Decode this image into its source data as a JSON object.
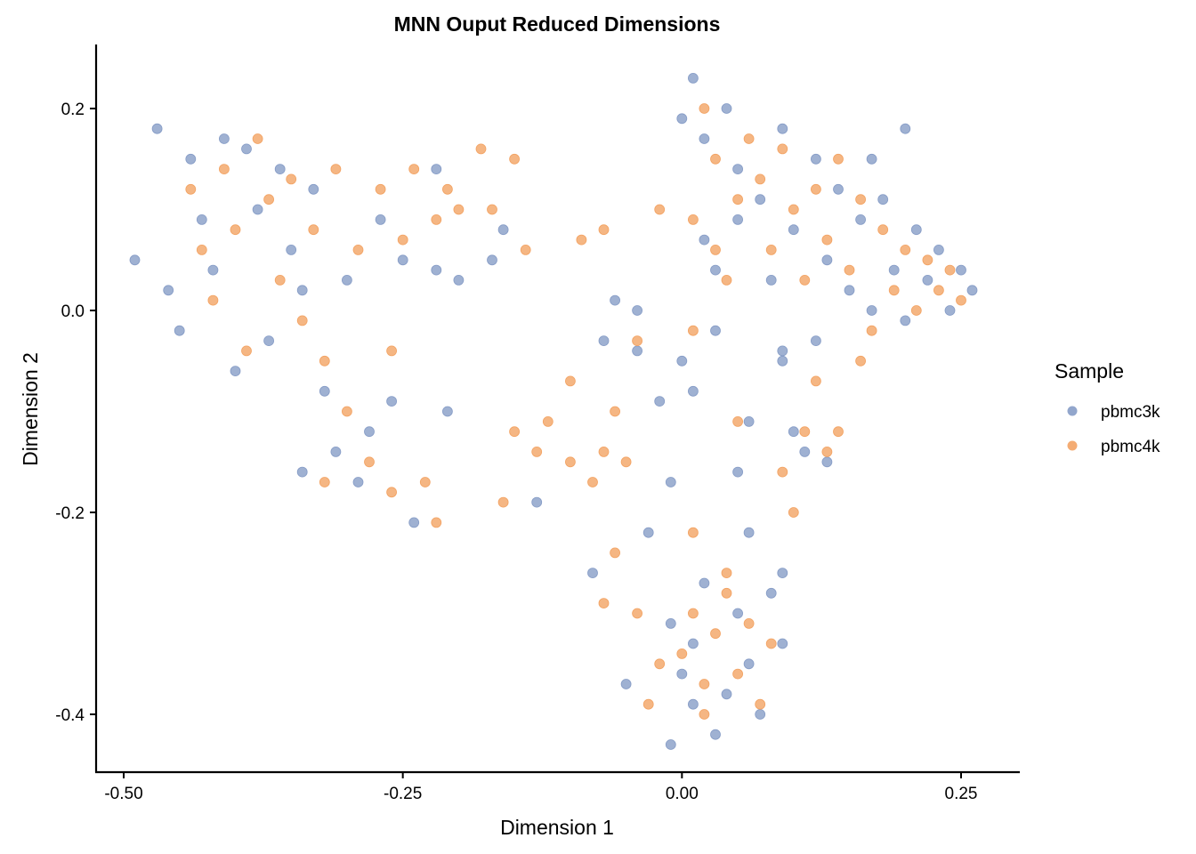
{
  "chart_data": {
    "type": "scatter",
    "title": "MNN Ouput Reduced Dimensions",
    "xlabel": "Dimension 1",
    "ylabel": "Dimension 2",
    "xlim": [
      -0.5,
      0.3
    ],
    "ylim": [
      -0.45,
      0.26
    ],
    "x_ticks": [
      -0.5,
      -0.25,
      0.0,
      0.25
    ],
    "x_tick_labels": [
      "-0.50",
      "-0.25",
      "0.00",
      "0.25"
    ],
    "y_ticks": [
      -0.4,
      -0.2,
      0.0,
      0.2
    ],
    "y_tick_labels": [
      "-0.4",
      "-0.2",
      "0.0",
      "0.2"
    ],
    "grid": false,
    "legend": {
      "title": "Sample",
      "position": "right"
    },
    "colors": {
      "pbmc3k": "#7f97c3",
      "pbmc4k": "#f29d5a"
    },
    "series": [
      {
        "name": "pbmc3k",
        "points": [
          [
            -0.49,
            0.05
          ],
          [
            -0.47,
            0.18
          ],
          [
            -0.46,
            0.02
          ],
          [
            -0.45,
            -0.02
          ],
          [
            -0.44,
            0.15
          ],
          [
            -0.43,
            0.09
          ],
          [
            -0.42,
            0.04
          ],
          [
            -0.41,
            0.17
          ],
          [
            -0.4,
            -0.06
          ],
          [
            -0.39,
            0.16
          ],
          [
            -0.38,
            0.1
          ],
          [
            -0.37,
            -0.03
          ],
          [
            -0.36,
            0.14
          ],
          [
            -0.35,
            0.06
          ],
          [
            -0.34,
            0.02
          ],
          [
            -0.33,
            0.12
          ],
          [
            -0.32,
            -0.08
          ],
          [
            -0.31,
            -0.14
          ],
          [
            -0.3,
            0.03
          ],
          [
            -0.29,
            -0.17
          ],
          [
            -0.27,
            0.09
          ],
          [
            -0.26,
            -0.09
          ],
          [
            -0.25,
            0.05
          ],
          [
            -0.24,
            -0.21
          ],
          [
            -0.22,
            0.14
          ],
          [
            -0.22,
            0.04
          ],
          [
            -0.21,
            -0.1
          ],
          [
            -0.2,
            0.03
          ],
          [
            -0.17,
            0.05
          ],
          [
            -0.16,
            0.08
          ],
          [
            -0.13,
            -0.19
          ],
          [
            -0.34,
            -0.16
          ],
          [
            -0.28,
            -0.12
          ],
          [
            -0.07,
            -0.03
          ],
          [
            -0.06,
            0.01
          ],
          [
            -0.04,
            -0.04
          ],
          [
            -0.04,
            0.0
          ],
          [
            -0.02,
            -0.09
          ],
          [
            -0.01,
            -0.17
          ],
          [
            0.0,
            -0.05
          ],
          [
            0.01,
            -0.08
          ],
          [
            0.03,
            -0.02
          ],
          [
            0.08,
            0.03
          ],
          [
            0.09,
            -0.04
          ],
          [
            0.1,
            -0.12
          ],
          [
            0.11,
            -0.14
          ],
          [
            0.13,
            -0.15
          ],
          [
            0.06,
            -0.11
          ],
          [
            0.05,
            -0.16
          ],
          [
            -0.08,
            -0.26
          ],
          [
            0.0,
            0.19
          ],
          [
            0.01,
            0.23
          ],
          [
            0.02,
            0.17
          ],
          [
            0.04,
            0.2
          ],
          [
            0.05,
            0.14
          ],
          [
            0.07,
            0.11
          ],
          [
            0.09,
            0.18
          ],
          [
            0.1,
            0.08
          ],
          [
            0.12,
            0.15
          ],
          [
            0.13,
            0.05
          ],
          [
            0.14,
            0.12
          ],
          [
            0.15,
            0.02
          ],
          [
            0.16,
            0.09
          ],
          [
            0.17,
            0.0
          ],
          [
            0.18,
            0.11
          ],
          [
            0.19,
            0.04
          ],
          [
            0.2,
            -0.01
          ],
          [
            0.21,
            0.08
          ],
          [
            0.22,
            0.03
          ],
          [
            0.23,
            0.06
          ],
          [
            0.24,
            0.0
          ],
          [
            0.25,
            0.04
          ],
          [
            0.26,
            0.02
          ],
          [
            0.2,
            0.18
          ],
          [
            0.17,
            0.15
          ],
          [
            0.12,
            -0.03
          ],
          [
            0.09,
            -0.05
          ],
          [
            0.03,
            0.04
          ],
          [
            0.02,
            0.07
          ],
          [
            0.05,
            0.09
          ],
          [
            0.01,
            -0.33
          ],
          [
            0.03,
            -0.42
          ],
          [
            0.04,
            -0.38
          ],
          [
            0.05,
            -0.3
          ],
          [
            0.06,
            -0.35
          ],
          [
            0.07,
            -0.4
          ],
          [
            0.08,
            -0.28
          ],
          [
            0.09,
            -0.33
          ],
          [
            0.02,
            -0.27
          ],
          [
            0.0,
            -0.36
          ],
          [
            -0.01,
            -0.31
          ],
          [
            -0.03,
            -0.22
          ],
          [
            0.01,
            -0.39
          ],
          [
            -0.05,
            -0.37
          ],
          [
            -0.01,
            -0.43
          ],
          [
            0.06,
            -0.22
          ],
          [
            0.09,
            -0.26
          ]
        ]
      },
      {
        "name": "pbmc4k",
        "points": [
          [
            -0.44,
            0.12
          ],
          [
            -0.43,
            0.06
          ],
          [
            -0.42,
            0.01
          ],
          [
            -0.41,
            0.14
          ],
          [
            -0.4,
            0.08
          ],
          [
            -0.39,
            -0.04
          ],
          [
            -0.38,
            0.17
          ],
          [
            -0.37,
            0.11
          ],
          [
            -0.36,
            0.03
          ],
          [
            -0.35,
            0.13
          ],
          [
            -0.34,
            -0.01
          ],
          [
            -0.33,
            0.08
          ],
          [
            -0.32,
            -0.05
          ],
          [
            -0.31,
            0.14
          ],
          [
            -0.3,
            -0.1
          ],
          [
            -0.29,
            0.06
          ],
          [
            -0.28,
            -0.15
          ],
          [
            -0.27,
            0.12
          ],
          [
            -0.26,
            -0.18
          ],
          [
            -0.25,
            0.07
          ],
          [
            -0.24,
            0.14
          ],
          [
            -0.23,
            -0.17
          ],
          [
            -0.22,
            0.09
          ],
          [
            -0.21,
            0.12
          ],
          [
            -0.2,
            0.1
          ],
          [
            -0.18,
            0.16
          ],
          [
            -0.17,
            0.1
          ],
          [
            -0.15,
            0.15
          ],
          [
            -0.14,
            0.06
          ],
          [
            -0.22,
            -0.21
          ],
          [
            -0.32,
            -0.17
          ],
          [
            -0.26,
            -0.04
          ],
          [
            -0.16,
            -0.19
          ],
          [
            -0.15,
            -0.12
          ],
          [
            -0.13,
            -0.14
          ],
          [
            -0.12,
            -0.11
          ],
          [
            -0.1,
            -0.15
          ],
          [
            -0.1,
            -0.07
          ],
          [
            -0.08,
            -0.17
          ],
          [
            -0.07,
            -0.14
          ],
          [
            -0.06,
            -0.1
          ],
          [
            -0.05,
            -0.15
          ],
          [
            -0.04,
            -0.03
          ],
          [
            -0.02,
            0.1
          ],
          [
            0.01,
            -0.02
          ],
          [
            0.05,
            -0.11
          ],
          [
            0.09,
            -0.16
          ],
          [
            0.11,
            -0.12
          ],
          [
            0.12,
            -0.07
          ],
          [
            0.13,
            -0.14
          ],
          [
            0.14,
            -0.12
          ],
          [
            0.1,
            -0.2
          ],
          [
            -0.07,
            0.08
          ],
          [
            -0.09,
            0.07
          ],
          [
            0.02,
            0.2
          ],
          [
            0.03,
            0.15
          ],
          [
            0.05,
            0.11
          ],
          [
            0.06,
            0.17
          ],
          [
            0.07,
            0.13
          ],
          [
            0.08,
            0.06
          ],
          [
            0.09,
            0.16
          ],
          [
            0.1,
            0.1
          ],
          [
            0.11,
            0.03
          ],
          [
            0.12,
            0.12
          ],
          [
            0.13,
            0.07
          ],
          [
            0.14,
            0.15
          ],
          [
            0.15,
            0.04
          ],
          [
            0.16,
            0.11
          ],
          [
            0.17,
            -0.02
          ],
          [
            0.18,
            0.08
          ],
          [
            0.19,
            0.02
          ],
          [
            0.2,
            0.06
          ],
          [
            0.21,
            0.0
          ],
          [
            0.22,
            0.05
          ],
          [
            0.23,
            0.02
          ],
          [
            0.24,
            0.04
          ],
          [
            0.25,
            0.01
          ],
          [
            0.03,
            0.06
          ],
          [
            0.04,
            0.03
          ],
          [
            0.01,
            0.09
          ],
          [
            0.16,
            -0.05
          ],
          [
            0.0,
            -0.34
          ],
          [
            0.01,
            -0.3
          ],
          [
            0.02,
            -0.37
          ],
          [
            0.03,
            -0.32
          ],
          [
            0.04,
            -0.28
          ],
          [
            0.05,
            -0.36
          ],
          [
            0.06,
            -0.31
          ],
          [
            0.07,
            -0.39
          ],
          [
            0.08,
            -0.33
          ],
          [
            0.02,
            -0.4
          ],
          [
            -0.02,
            -0.35
          ],
          [
            -0.04,
            -0.3
          ],
          [
            -0.06,
            -0.24
          ],
          [
            -0.07,
            -0.29
          ],
          [
            -0.03,
            -0.39
          ],
          [
            0.01,
            -0.22
          ],
          [
            0.04,
            -0.26
          ]
        ]
      }
    ]
  }
}
